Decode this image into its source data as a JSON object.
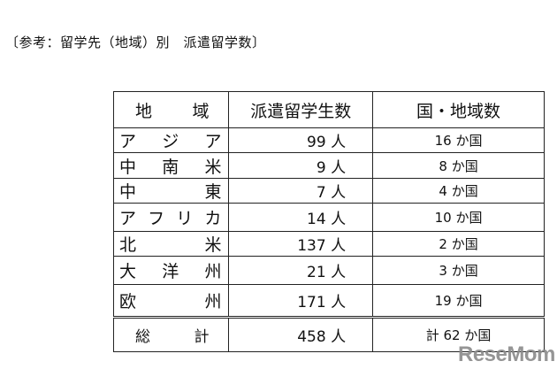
{
  "caption": "〔参考：留学先（地域）別　派遣留学数〕",
  "table": {
    "headers": [
      "地　　域",
      "派遣留学生数",
      "国・地域数"
    ],
    "header_region_chars": [
      "地",
      "域"
    ],
    "rows": [
      {
        "region": "アジア",
        "chars": [
          "ア",
          "ジ",
          "ア"
        ],
        "students": "99 人",
        "countries": "16 か国"
      },
      {
        "region": "中南米",
        "chars": [
          "中",
          "南",
          "米"
        ],
        "students": "9 人",
        "countries": "8 か国"
      },
      {
        "region": "中東",
        "chars": [
          "中",
          "東"
        ],
        "students": "7 人",
        "countries": "4 か国"
      },
      {
        "region": "アフリカ",
        "chars": [
          "ア",
          "フ",
          "リ",
          "カ"
        ],
        "students": "14 人",
        "countries": "10 か国"
      },
      {
        "region": "北米",
        "chars": [
          "北",
          "米"
        ],
        "students": "137 人",
        "countries": "2 か国"
      },
      {
        "region": "大洋州",
        "chars": [
          "大",
          "洋",
          "州"
        ],
        "students": "21 人",
        "countries": "3 か国"
      },
      {
        "region": "欧州",
        "chars": [
          "欧",
          "州"
        ],
        "students": "171 人",
        "countries": "19 か国"
      }
    ],
    "total": {
      "label_chars": [
        "総",
        "計"
      ],
      "students": "458 人",
      "countries": "計 62 か国"
    }
  },
  "watermark": "ReseMom"
}
